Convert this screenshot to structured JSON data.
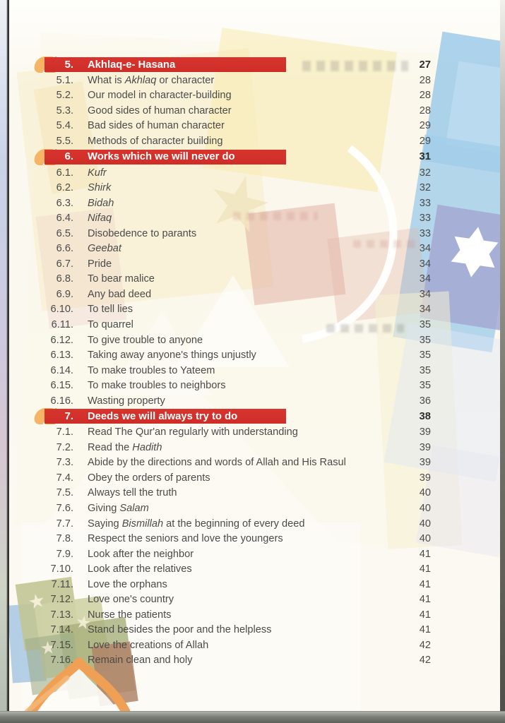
{
  "colors": {
    "accent_red": "#ce2e28",
    "tab_orange": "#f0a04c",
    "page_bg": "#fbf9f2",
    "text": "#4b4b49",
    "header_text": "#ffffff"
  },
  "decor": {
    "motifs": [
      "crescent-icon",
      "six-pointed-star-icon",
      "five-pointed-star-icon",
      "mosque-dome-icon"
    ]
  },
  "toc": {
    "sections": [
      {
        "num": "5.",
        "title": "Akhlaq-e- Hasana",
        "page": "27",
        "items": [
          {
            "num": "5.1.",
            "page": "28",
            "segments": [
              {
                "text": "What is ",
                "italic": false
              },
              {
                "text": "Akhlaq",
                "italic": true
              },
              {
                "text": " or character",
                "italic": false
              }
            ]
          },
          {
            "num": "5.2.",
            "page": "28",
            "segments": [
              {
                "text": "Our model in character-building",
                "italic": false
              }
            ]
          },
          {
            "num": "5.3.",
            "page": "28",
            "segments": [
              {
                "text": "Good sides of human character",
                "italic": false
              }
            ]
          },
          {
            "num": "5.4.",
            "page": "29",
            "segments": [
              {
                "text": "Bad sides of human character",
                "italic": false
              }
            ]
          },
          {
            "num": "5.5.",
            "page": "29",
            "segments": [
              {
                "text": "Methods of character building",
                "italic": false
              }
            ]
          }
        ]
      },
      {
        "num": "6.",
        "title": "Works which we will never do",
        "page": "31",
        "items": [
          {
            "num": "6.1.",
            "page": "32",
            "segments": [
              {
                "text": "Kufr",
                "italic": true
              }
            ]
          },
          {
            "num": "6.2.",
            "page": "32",
            "segments": [
              {
                "text": "Shirk",
                "italic": true
              }
            ]
          },
          {
            "num": "6.3.",
            "page": "33",
            "segments": [
              {
                "text": "Bidah",
                "italic": true
              }
            ]
          },
          {
            "num": "6.4.",
            "page": "33",
            "segments": [
              {
                "text": "Nifaq",
                "italic": true
              }
            ]
          },
          {
            "num": "6.5.",
            "page": "33",
            "segments": [
              {
                "text": "Disobedence to parants",
                "italic": false
              }
            ]
          },
          {
            "num": "6.6.",
            "page": "34",
            "segments": [
              {
                "text": "Geebat",
                "italic": true
              }
            ]
          },
          {
            "num": "6.7.",
            "page": "34",
            "segments": [
              {
                "text": "Pride",
                "italic": false
              }
            ]
          },
          {
            "num": "6.8.",
            "page": "34",
            "segments": [
              {
                "text": "To bear malice",
                "italic": false
              }
            ]
          },
          {
            "num": "6.9.",
            "page": "34",
            "segments": [
              {
                "text": "Any bad deed",
                "italic": false
              }
            ]
          },
          {
            "num": "6.10.",
            "page": "34",
            "segments": [
              {
                "text": "To tell lies",
                "italic": false
              }
            ]
          },
          {
            "num": "6.11.",
            "page": "35",
            "segments": [
              {
                "text": "To quarrel",
                "italic": false
              }
            ]
          },
          {
            "num": "6.12.",
            "page": "35",
            "segments": [
              {
                "text": "To give trouble to anyone",
                "italic": false
              }
            ]
          },
          {
            "num": "6.13.",
            "page": "35",
            "segments": [
              {
                "text": "Taking away anyone's things unjustly",
                "italic": false
              }
            ]
          },
          {
            "num": "6.14.",
            "page": "35",
            "segments": [
              {
                "text": "To make troubles to Yateem",
                "italic": false
              }
            ]
          },
          {
            "num": "6.15.",
            "page": "35",
            "segments": [
              {
                "text": "To make troubles to neighbors",
                "italic": false
              }
            ]
          },
          {
            "num": "6.16.",
            "page": "36",
            "segments": [
              {
                "text": "Wasting property",
                "italic": false
              }
            ]
          }
        ]
      },
      {
        "num": "7.",
        "title": "Deeds we will always try to do",
        "page": "38",
        "items": [
          {
            "num": "7.1.",
            "page": "39",
            "segments": [
              {
                "text": "Read The Qur'an regularly with understanding",
                "italic": false
              }
            ]
          },
          {
            "num": "7.2.",
            "page": "39",
            "segments": [
              {
                "text": "Read the ",
                "italic": false
              },
              {
                "text": "Hadith",
                "italic": true
              }
            ]
          },
          {
            "num": "7.3.",
            "page": "39",
            "segments": [
              {
                "text": "Abide by the directions and words of Allah and His Rasul",
                "italic": false
              }
            ]
          },
          {
            "num": "7.4.",
            "page": "39",
            "segments": [
              {
                "text": "Obey the orders of parents",
                "italic": false
              }
            ]
          },
          {
            "num": "7.5.",
            "page": "40",
            "segments": [
              {
                "text": "Always tell the truth",
                "italic": false
              }
            ]
          },
          {
            "num": "7.6.",
            "page": "40",
            "segments": [
              {
                "text": "Giving ",
                "italic": false
              },
              {
                "text": "Salam",
                "italic": true
              }
            ]
          },
          {
            "num": "7.7.",
            "page": "40",
            "segments": [
              {
                "text": "Saying ",
                "italic": false
              },
              {
                "text": "Bismillah",
                "italic": true
              },
              {
                "text": " at the beginning of every deed",
                "italic": false
              }
            ]
          },
          {
            "num": "7.8.",
            "page": "40",
            "segments": [
              {
                "text": "Respect the seniors and love the youngers",
                "italic": false
              }
            ]
          },
          {
            "num": "7.9.",
            "page": "41",
            "segments": [
              {
                "text": "Look after the neighbor",
                "italic": false
              }
            ]
          },
          {
            "num": "7.10.",
            "page": "41",
            "segments": [
              {
                "text": "Look after the relatives",
                "italic": false
              }
            ]
          },
          {
            "num": "7.11.",
            "page": "41",
            "segments": [
              {
                "text": "Love the orphans",
                "italic": false
              }
            ]
          },
          {
            "num": "7.12.",
            "page": "41",
            "segments": [
              {
                "text": "Love one's country",
                "italic": false
              }
            ]
          },
          {
            "num": "7.13.",
            "page": "41",
            "segments": [
              {
                "text": "Nurse the patients",
                "italic": false
              }
            ]
          },
          {
            "num": "7.14.",
            "page": "41",
            "segments": [
              {
                "text": "Stand besides the poor and the helpless",
                "italic": false
              }
            ]
          },
          {
            "num": "7.15.",
            "page": "42",
            "segments": [
              {
                "text": "Love the creations of Allah",
                "italic": false
              }
            ]
          },
          {
            "num": "7.16.",
            "page": "42",
            "segments": [
              {
                "text": "Remain clean and holy",
                "italic": false
              }
            ]
          }
        ]
      }
    ]
  }
}
